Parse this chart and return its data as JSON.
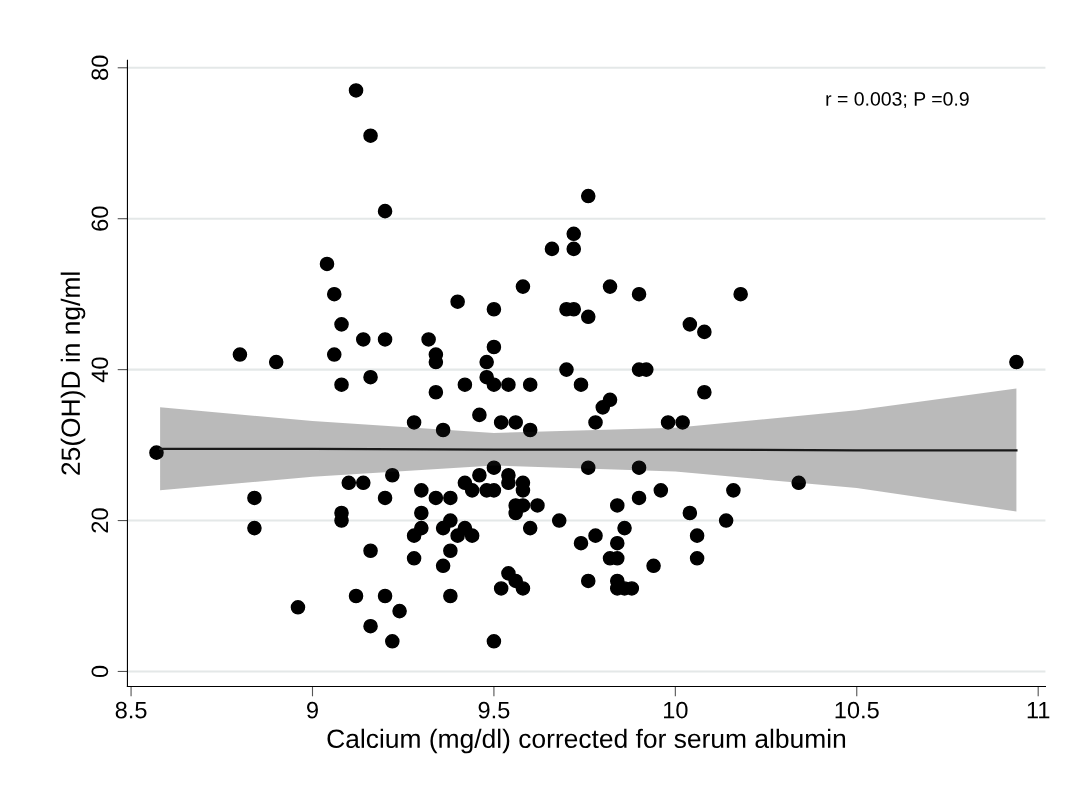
{
  "chart_data": {
    "type": "scatter",
    "xlabel": "Calcium (mg/dl) corrected for serum albumin",
    "ylabel": "25(OH)D in ng/ml",
    "annotations": [
      "r = 0.003; P =0.9"
    ],
    "xlim": [
      8.49,
      11.02
    ],
    "ylim": [
      -2,
      81
    ],
    "xticks": [
      8.5,
      9,
      9.5,
      10,
      10.5,
      11
    ],
    "yticks": [
      0,
      20,
      40,
      60,
      80
    ],
    "grid": "y",
    "series": [
      {
        "color": "#000000",
        "marker": "circle",
        "x": [
          8.57,
          8.8,
          8.84,
          8.84,
          8.9,
          8.96,
          9.04,
          9.06,
          9.06,
          9.08,
          9.08,
          9.08,
          9.08,
          9.1,
          9.12,
          9.12,
          9.14,
          9.14,
          9.16,
          9.16,
          9.16,
          9.16,
          9.2,
          9.2,
          9.2,
          9.2,
          9.22,
          9.22,
          9.24,
          9.28,
          9.28,
          9.28,
          9.3,
          9.3,
          9.3,
          9.32,
          9.34,
          9.34,
          9.34,
          9.34,
          9.36,
          9.36,
          9.36,
          9.38,
          9.38,
          9.38,
          9.38,
          9.4,
          9.4,
          9.42,
          9.42,
          9.42,
          9.44,
          9.44,
          9.46,
          9.46,
          9.48,
          9.48,
          9.48,
          9.5,
          9.5,
          9.5,
          9.5,
          9.5,
          9.5,
          9.52,
          9.52,
          9.54,
          9.54,
          9.54,
          9.54,
          9.56,
          9.56,
          9.56,
          9.56,
          9.58,
          9.58,
          9.58,
          9.58,
          9.58,
          9.6,
          9.6,
          9.6,
          9.62,
          9.66,
          9.68,
          9.7,
          9.7,
          9.72,
          9.72,
          9.72,
          9.74,
          9.74,
          9.76,
          9.76,
          9.76,
          9.76,
          9.78,
          9.78,
          9.8,
          9.82,
          9.82,
          9.82,
          9.84,
          9.84,
          9.84,
          9.84,
          9.84,
          9.86,
          9.86,
          9.88,
          9.9,
          9.9,
          9.9,
          9.9,
          9.92,
          9.94,
          9.96,
          9.98,
          10.02,
          10.04,
          10.04,
          10.06,
          10.06,
          10.08,
          10.08,
          10.14,
          10.16,
          10.18,
          10.34,
          10.94
        ],
        "values": [
          29,
          42,
          23,
          19,
          41,
          8.5,
          54,
          50,
          42,
          46,
          38,
          21,
          20,
          25,
          77,
          10,
          44,
          25,
          71,
          39,
          16,
          6,
          61,
          44,
          23,
          10,
          4,
          26,
          8,
          33,
          18,
          15,
          24,
          21,
          19,
          44,
          42,
          41,
          37,
          23,
          32,
          19,
          14,
          23,
          20,
          16,
          10,
          49,
          18,
          38,
          25,
          19,
          24,
          18,
          34,
          26,
          41,
          39,
          24,
          48,
          43,
          38,
          27,
          24,
          4,
          33,
          11,
          38,
          26,
          25,
          13,
          33,
          22,
          21,
          12,
          51,
          25,
          24,
          22,
          11,
          38,
          32,
          19,
          22,
          56,
          20,
          48,
          40,
          58,
          56,
          48,
          38,
          17,
          63,
          47,
          27,
          12,
          33,
          18,
          35,
          51,
          36,
          15,
          22,
          17,
          15,
          12,
          11,
          19,
          11,
          11,
          50,
          40,
          27,
          23,
          40,
          14,
          24,
          33,
          33,
          46,
          21,
          18,
          15,
          45,
          37,
          20,
          24,
          50,
          25,
          41
        ]
      },
      {
        "type": "line",
        "color": "#1a1a1a",
        "marker": "none",
        "x": [
          8.58,
          9.0,
          9.5,
          10.0,
          10.5,
          10.94
        ],
        "values": [
          29.5,
          29.5,
          29.4,
          29.4,
          29.3,
          29.3
        ],
        "lower": [
          24,
          25.8,
          27.3,
          26.5,
          24.3,
          21.2
        ],
        "upper": [
          35,
          33.2,
          31.6,
          32.3,
          34.6,
          37.5
        ]
      }
    ]
  }
}
